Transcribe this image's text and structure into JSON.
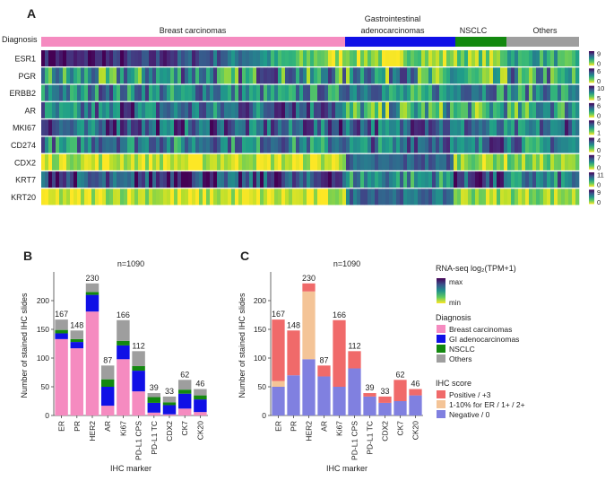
{
  "panel_labels": {
    "a": "A",
    "b": "B",
    "c": "C"
  },
  "heatmap": {
    "diagnosis_label": "Diagnosis",
    "groups": [
      {
        "name": "Breast carcinomas",
        "color": "#f58bc0",
        "fraction": 0.565
      },
      {
        "name": "Gastrointestinal adenocarcinomas",
        "color": "#1010e6",
        "fraction": 0.205
      },
      {
        "name": "NSCLC",
        "color": "#13880f",
        "fraction": 0.095
      },
      {
        "name": "Others",
        "color": "#9e9e9e",
        "fraction": 0.135
      }
    ],
    "group_label_lines": {
      "breast": [
        "Breast carcinomas"
      ],
      "gi": [
        "Gastrointestinal",
        "adenocarcinomas"
      ],
      "nsclc": [
        "NSCLC"
      ],
      "others": [
        "Others"
      ]
    },
    "rows": [
      {
        "gene": "ESR1",
        "scale": [
          "9",
          "0"
        ]
      },
      {
        "gene": "PGR",
        "scale": [
          "6",
          "0"
        ]
      },
      {
        "gene": "ERBB2",
        "scale": [
          "10",
          "5"
        ]
      },
      {
        "gene": "AR",
        "scale": [
          "6",
          "0"
        ]
      },
      {
        "gene": "MKI67",
        "scale": [
          "6",
          "1"
        ]
      },
      {
        "gene": "CD274",
        "scale": [
          "4",
          "0"
        ]
      },
      {
        "gene": "CDX2",
        "scale": [
          "7",
          "0"
        ]
      },
      {
        "gene": "KRT7",
        "scale": [
          "11",
          "0"
        ]
      },
      {
        "gene": "KRT20",
        "scale": [
          "9",
          "0"
        ]
      }
    ]
  },
  "chart_data": [
    {
      "type": "bar",
      "panel": "B",
      "title": "n=1090",
      "xlabel": "IHC marker",
      "ylabel": "Number of stained IHC slides",
      "ylim": [
        0,
        250
      ],
      "yticks": [
        "0",
        "50",
        "100",
        "150",
        "200"
      ],
      "categories": [
        "ER",
        "PR",
        "HER2",
        "AR",
        "Ki67",
        "PD-L1 CPS",
        "PD-L1 TC",
        "CDX2",
        "CK7",
        "CK20"
      ],
      "totals": [
        167,
        148,
        230,
        87,
        166,
        112,
        39,
        33,
        62,
        46
      ],
      "series": [
        {
          "name": "Breast carcinomas",
          "color": "#f58bc0",
          "values": [
            133,
            117,
            181,
            17,
            98,
            42,
            5,
            2,
            12,
            6
          ]
        },
        {
          "name": "GI adenocarcinomas",
          "color": "#1010e6",
          "values": [
            10,
            11,
            29,
            33,
            24,
            36,
            17,
            16,
            26,
            22
          ]
        },
        {
          "name": "NSCLC",
          "color": "#13880f",
          "values": [
            6,
            5,
            5,
            13,
            8,
            8,
            10,
            5,
            7,
            7
          ]
        },
        {
          "name": "Others",
          "color": "#9e9e9e",
          "values": [
            18,
            15,
            15,
            24,
            36,
            26,
            7,
            10,
            17,
            11
          ]
        }
      ]
    },
    {
      "type": "bar",
      "panel": "C",
      "title": "n=1090",
      "xlabel": "IHC marker",
      "ylabel": "Number of stained IHC slides",
      "ylim": [
        0,
        250
      ],
      "yticks": [
        "0",
        "50",
        "100",
        "150",
        "200"
      ],
      "categories": [
        "ER",
        "PR",
        "HER2",
        "AR",
        "Ki67",
        "PD-L1 CPS",
        "PD-L1 TC",
        "CDX2",
        "CK7",
        "CK20"
      ],
      "totals": [
        167,
        148,
        230,
        87,
        166,
        112,
        39,
        33,
        62,
        46
      ],
      "series": [
        {
          "name": "Negative / 0",
          "color": "#8080e0",
          "values": [
            50,
            70,
            98,
            68,
            50,
            82,
            33,
            22,
            25,
            35
          ]
        },
        {
          "name": "1-10% for ER / 1+ / 2+",
          "color": "#f4c497",
          "values": [
            10,
            0,
            118,
            0,
            0,
            0,
            0,
            0,
            0,
            0
          ]
        },
        {
          "name": "Positive / +3",
          "color": "#f06a6a",
          "values": [
            107,
            78,
            14,
            19,
            116,
            30,
            6,
            11,
            37,
            11
          ]
        }
      ]
    }
  ],
  "legend": {
    "rna_title": "RNA-seq log₂(TPM+1)",
    "rna_max": "max",
    "rna_min": "min",
    "diagnosis_title": "Diagnosis",
    "diagnosis_items": [
      {
        "label": "Breast carcinomas",
        "color": "#f58bc0"
      },
      {
        "label": "GI adenocarcinomas",
        "color": "#1010e6"
      },
      {
        "label": "NSCLC",
        "color": "#13880f"
      },
      {
        "label": "Others",
        "color": "#9e9e9e"
      }
    ],
    "ihc_title": "IHC score",
    "ihc_items": [
      {
        "label": "Positive / +3",
        "color": "#f06a6a"
      },
      {
        "label": "1-10% for ER / 1+ / 2+",
        "color": "#f4c497"
      },
      {
        "label": "Negative / 0",
        "color": "#8080e0"
      }
    ]
  }
}
